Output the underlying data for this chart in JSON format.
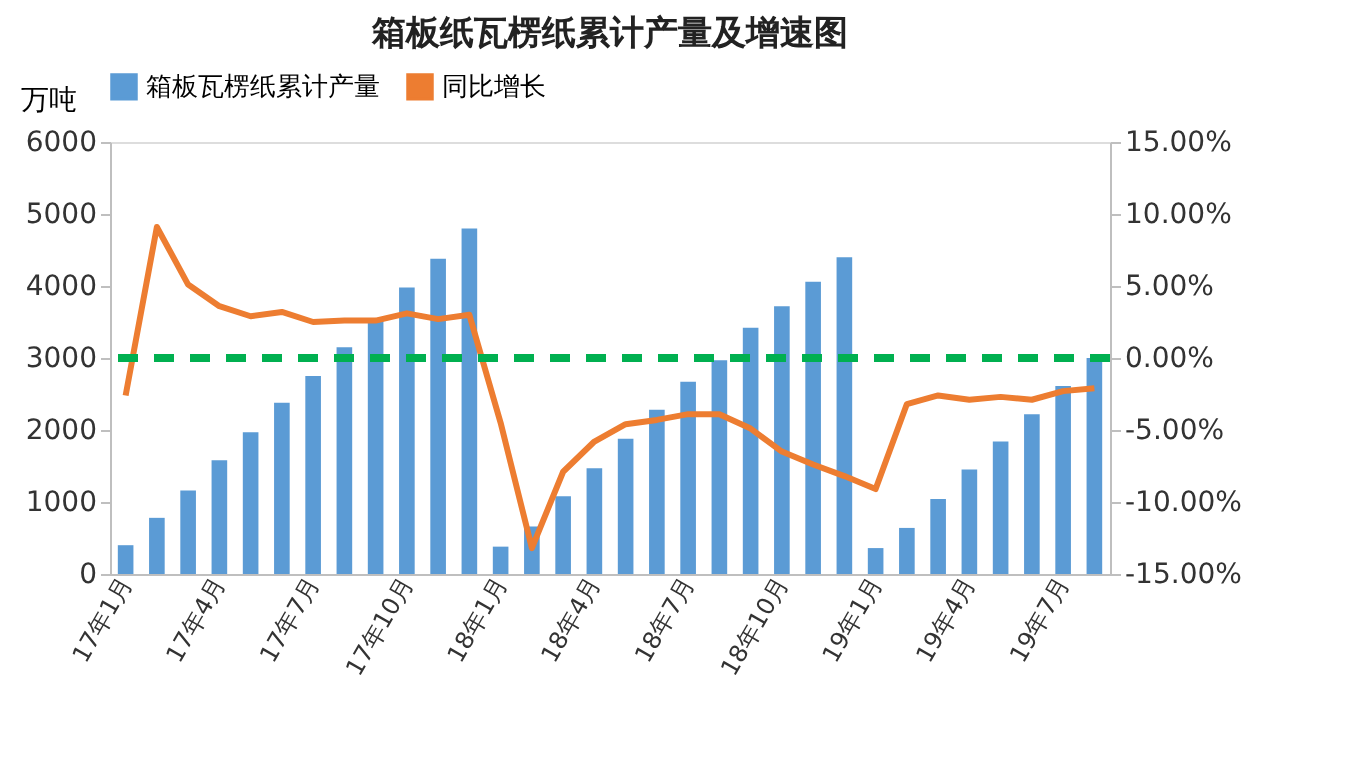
{
  "chart_data": {
    "type": "bar",
    "title": "箱板纸瓦楞纸累计产量及增速图",
    "ylabel": "万吨",
    "categories": [
      "17年1月",
      null,
      null,
      "17年4月",
      null,
      null,
      "17年7月",
      null,
      null,
      "17年10月",
      null,
      null,
      "18年1月",
      null,
      null,
      "18年4月",
      null,
      null,
      "18年7月",
      null,
      null,
      "18年10月",
      null,
      null,
      "19年1月",
      null,
      null,
      "19年4月",
      null,
      null,
      "19年7月",
      null
    ],
    "series": [
      {
        "name": "箱板瓦楞纸累计产量",
        "color": "#5b9bd5",
        "values": [
          400,
          780,
          1160,
          1580,
          1970,
          2380,
          2750,
          3150,
          3550,
          3980,
          4380,
          4800,
          380,
          660,
          1080,
          1470,
          1880,
          2280,
          2670,
          2970,
          3420,
          3720,
          4060,
          4400,
          360,
          640,
          1040,
          1450,
          1840,
          2220,
          2610,
          3000
        ]
      },
      {
        "name": "同比增长",
        "type": "line",
        "axis": "y2",
        "color": "#ed7d31",
        "values": [
          -2.6,
          9.1,
          5.1,
          3.6,
          2.9,
          3.2,
          2.5,
          2.6,
          2.6,
          3.1,
          2.7,
          3.0,
          -4.5,
          -13.2,
          -7.9,
          -5.8,
          -4.6,
          -4.3,
          -3.9,
          -3.9,
          -4.9,
          -6.5,
          -7.4,
          -8.2,
          -9.1,
          -3.2,
          -2.6,
          -2.9,
          -2.7,
          -2.9,
          -2.3,
          -2.1
        ]
      }
    ],
    "ylim": [
      0,
      6000
    ],
    "yticks": [
      0,
      1000,
      2000,
      3000,
      4000,
      5000,
      6000
    ],
    "y2lim": [
      -15,
      15
    ],
    "y2ticks": [
      {
        "value": -15,
        "label": "-15.00%"
      },
      {
        "value": -10,
        "label": "-10.00%"
      },
      {
        "value": -5,
        "label": "-5.00%"
      },
      {
        "value": 0,
        "label": "0.00%"
      },
      {
        "value": 5,
        "label": "5.00%"
      },
      {
        "value": 10,
        "label": "10.00%"
      },
      {
        "value": 15,
        "label": "15.00%"
      }
    ],
    "ref_lines": [
      {
        "axis": "y2",
        "value": 0,
        "color": "#00b050",
        "line_style": "dashed"
      }
    ],
    "legend": "top",
    "grid": false,
    "marker": "none",
    "line_style": "solid"
  }
}
